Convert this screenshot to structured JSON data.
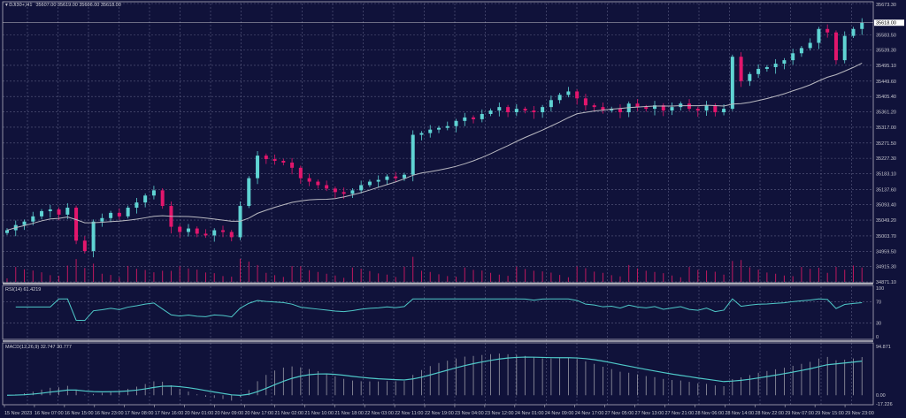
{
  "header": {
    "symbol": "DJI30+,H1",
    "ohlc": "35607.00 35619.00 35606.00 35618.00"
  },
  "colors": {
    "background": "#10123a",
    "up": "#5fd3d3",
    "down": "#e2166c",
    "ma": "#b8b8c0",
    "grid": "#5a5c80",
    "volume": "#c0185e",
    "rsi": "#4fc9c9",
    "macd": "#4fc9c9",
    "macd_hist": "#9a9aa6"
  },
  "chart_data": {
    "type": "candlestick",
    "timeframe": "H1",
    "ylim": [
      34871.1,
      35673.3
    ],
    "price_ticks": [
      "35673.30",
      "35583.50",
      "35539.30",
      "35495.10",
      "35449.60",
      "35405.40",
      "35361.20",
      "35317.00",
      "35271.50",
      "35227.30",
      "35183.10",
      "35137.60",
      "35093.40",
      "35049.20",
      "35003.70",
      "34959.50",
      "34915.30",
      "34871.10"
    ],
    "current_price": "35618.00",
    "x_ticks": [
      "15 Nov 2023",
      "16 Nov 07:00",
      "16 Nov 15:00",
      "16 Nov 23:00",
      "17 Nov 08:00",
      "17 Nov 16:00",
      "20 Nov 01:00",
      "20 Nov 09:00",
      "20 Nov 17:00",
      "21 Nov 02:00",
      "21 Nov 10:00",
      "21 Nov 18:00",
      "22 Nov 03:00",
      "22 Nov 11:00",
      "22 Nov 19:00",
      "23 Nov 04:00",
      "23 Nov 12:00",
      "24 Nov 01:00",
      "24 Nov 09:00",
      "24 Nov 17:00",
      "27 Nov 05:00",
      "27 Nov 13:00",
      "27 Nov 21:00",
      "28 Nov 06:00",
      "28 Nov 14:00",
      "28 Nov 22:00",
      "29 Nov 07:00",
      "29 Nov 15:00",
      "29 Nov 23:00"
    ],
    "closes": [
      35020,
      35035,
      35045,
      35060,
      35075,
      35080,
      35065,
      35085,
      34990,
      34960,
      35045,
      35055,
      35070,
      35060,
      35085,
      35100,
      35120,
      35135,
      35090,
      35030,
      35015,
      35025,
      35010,
      35005,
      35020,
      35015,
      35000,
      35090,
      35170,
      35235,
      35225,
      35220,
      35215,
      35200,
      35170,
      35160,
      35150,
      35140,
      35130,
      35125,
      35135,
      35150,
      35160,
      35165,
      35175,
      35170,
      35180,
      35295,
      35300,
      35310,
      35315,
      35320,
      35335,
      35345,
      35340,
      35355,
      35365,
      35375,
      35360,
      35370,
      35365,
      35360,
      35375,
      35395,
      35410,
      35420,
      35400,
      35380,
      35375,
      35365,
      35370,
      35360,
      35385,
      35375,
      35370,
      35380,
      35365,
      35375,
      35385,
      35370,
      35365,
      35380,
      35360,
      35370,
      35520,
      35450,
      35470,
      35485,
      35490,
      35500,
      35510,
      35530,
      35545,
      35560,
      35600,
      35590,
      35510,
      35580,
      35600,
      35618
    ],
    "moving_average_period": 20,
    "rsi": {
      "label": "RSI(14) 61.4219",
      "ticks": [
        "100",
        "70",
        "30",
        "0"
      ],
      "ylim": [
        0,
        100
      ]
    },
    "macd": {
      "label": "MACD(12,26,9) 32.747 30.777",
      "ticks": [
        "94.871",
        "0.00",
        "-17.226"
      ],
      "ylim": [
        -17.226,
        94.871
      ]
    }
  }
}
